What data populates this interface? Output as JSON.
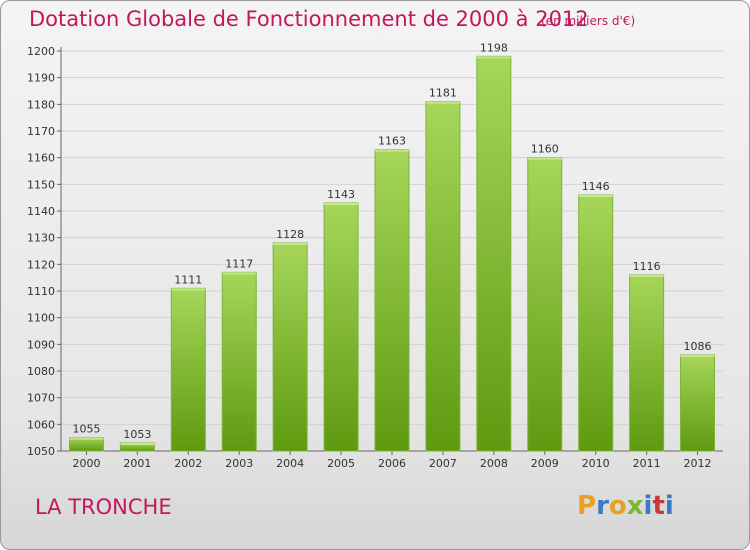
{
  "title": "Dotation Globale de Fonctionnement de 2000 à 2012",
  "subtitle": "(en milliers d'€)",
  "commune": "LA TRONCHE",
  "logo": {
    "letters": [
      "P",
      "r",
      "o",
      "x",
      "i",
      "t",
      "i"
    ],
    "colors": [
      "#e8a020",
      "#3a78c8",
      "#e8a020",
      "#7cb82f",
      "#3a78c8",
      "#c83a3a",
      "#3a78c8"
    ]
  },
  "colors": {
    "bar_top": "#a6d65a",
    "bar_bottom": "#5e9a10",
    "title": "#c2185b"
  },
  "chart_data": {
    "type": "bar",
    "categories": [
      "2000",
      "2001",
      "2002",
      "2003",
      "2004",
      "2005",
      "2006",
      "2007",
      "2008",
      "2009",
      "2010",
      "2011",
      "2012"
    ],
    "values": [
      1055,
      1053,
      1111,
      1117,
      1128,
      1143,
      1163,
      1181,
      1198,
      1160,
      1146,
      1116,
      1086
    ],
    "data_labels": [
      "1055",
      "1053",
      "1111",
      "1117",
      "1128",
      "1143",
      "1163",
      "1181",
      "1198",
      "1160",
      "1146",
      "1116",
      "1086"
    ],
    "yticks": [
      "1050",
      "1060",
      "1070",
      "1080",
      "1090",
      "1100",
      "1110",
      "1120",
      "1130",
      "1140",
      "1150",
      "1160",
      "1170",
      "1180",
      "1190",
      "1200"
    ],
    "ylim": [
      1050,
      1200
    ],
    "grid": true,
    "xlabel": "",
    "ylabel": ""
  }
}
